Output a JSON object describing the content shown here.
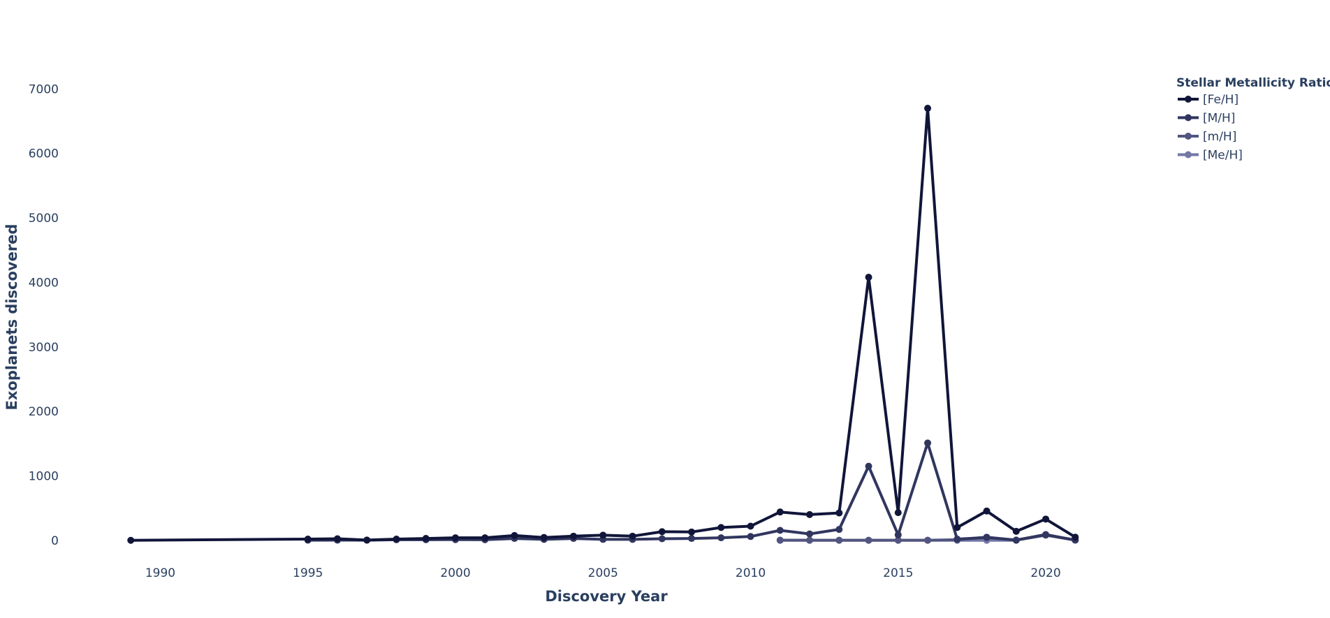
{
  "chart_data": {
    "type": "line",
    "xlabel": "Discovery Year",
    "ylabel": "Exoplanets discovered",
    "xlim": [
      1988,
      2022.2
    ],
    "ylim": [
      -500,
      7350
    ],
    "x_ticks": [
      1990,
      1995,
      2000,
      2005,
      2010,
      2015,
      2020
    ],
    "x_tick_labels": [
      "1990",
      "1995",
      "2000",
      "2005",
      "2010",
      "2015",
      "2020"
    ],
    "y_ticks": [
      0,
      1000,
      2000,
      3000,
      4000,
      5000,
      6000,
      7000
    ],
    "y_tick_labels": [
      "0",
      "1000",
      "2000",
      "3000",
      "4000",
      "5000",
      "6000",
      "7000"
    ],
    "legend": {
      "title": "Stellar Metallicity Ratio",
      "position": "top-right"
    },
    "series": [
      {
        "name": "[Fe/H]",
        "color": "#111539",
        "x": [
          1989,
          1995,
          1996,
          1997,
          1998,
          1999,
          2000,
          2001,
          2002,
          2003,
          2004,
          2005,
          2006,
          2007,
          2008,
          2009,
          2010,
          2011,
          2012,
          2013,
          2014,
          2015,
          2016,
          2017,
          2018,
          2019,
          2020,
          2021
        ],
        "y": [
          1,
          20,
          25,
          5,
          20,
          30,
          40,
          40,
          75,
          45,
          65,
          80,
          65,
          135,
          130,
          200,
          220,
          440,
          400,
          425,
          4080,
          430,
          6700,
          200,
          455,
          140,
          330,
          50
        ]
      },
      {
        "name": "[M/H]",
        "color": "#31365f",
        "x": [
          1995,
          1996,
          1997,
          1998,
          1999,
          2000,
          2001,
          2002,
          2003,
          2004,
          2005,
          2006,
          2007,
          2008,
          2009,
          2010,
          2011,
          2012,
          2013,
          2014,
          2015,
          2016,
          2017,
          2018,
          2019,
          2020,
          2021
        ],
        "y": [
          2,
          3,
          2,
          10,
          10,
          12,
          10,
          30,
          15,
          30,
          15,
          15,
          25,
          30,
          40,
          60,
          155,
          100,
          170,
          1150,
          85,
          1510,
          20,
          45,
          5,
          90,
          5
        ]
      },
      {
        "name": "[m/H]",
        "color": "#52557f",
        "x": [
          2011,
          2012,
          2013,
          2014,
          2015,
          2016,
          2017,
          2018,
          2019,
          2020,
          2021
        ],
        "y": [
          3,
          2,
          2,
          2,
          2,
          2,
          10,
          50,
          3,
          80,
          3
        ]
      },
      {
        "name": "[Me/H]",
        "color": "#7477a6",
        "x": [
          2011,
          2012,
          2013,
          2014,
          2015,
          2016,
          2017,
          2018,
          2019
        ],
        "y": [
          1,
          1,
          1,
          1,
          1,
          1,
          1,
          1,
          1
        ]
      }
    ]
  }
}
